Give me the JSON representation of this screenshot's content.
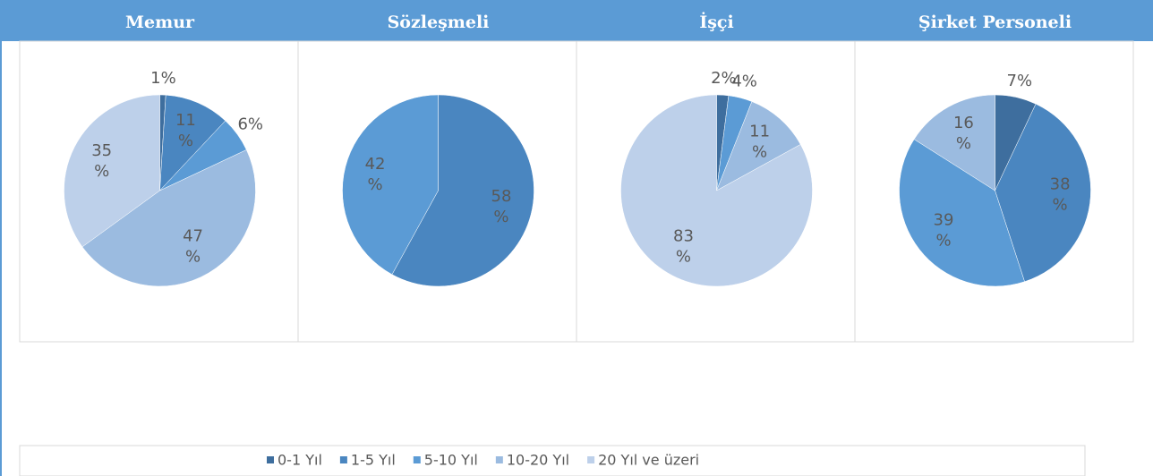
{
  "legend": {
    "categories": [
      "0-1 Yıl",
      "1-5 Yıl",
      "5-10 Yıl",
      "10-20 Yıl",
      "20 Yıl ve üzeri"
    ],
    "colors": [
      "#3e6e9e",
      "#4a86c0",
      "#5b9bd5",
      "#9bbbe0",
      "#bdd0ea"
    ]
  },
  "chart_data": [
    {
      "type": "pie",
      "title": "Memur",
      "values": [
        1,
        11,
        6,
        47,
        35
      ],
      "value_labels": [
        "1%",
        "11 %",
        "6%",
        "47 %",
        "35 %"
      ]
    },
    {
      "type": "pie",
      "title": "Sözleşmeli",
      "values": [
        null,
        58,
        42,
        null,
        null
      ],
      "value_labels": [
        null,
        "58 %",
        "42 %",
        null,
        null
      ]
    },
    {
      "type": "pie",
      "title": "İşçi",
      "values": [
        2,
        null,
        4,
        11,
        83
      ],
      "value_labels": [
        "2%",
        null,
        "4%",
        "11 %",
        "83 %"
      ]
    },
    {
      "type": "pie",
      "title": "Şirket Personeli",
      "values": [
        7,
        38,
        39,
        16,
        null
      ],
      "value_labels": [
        "7%",
        "38 %",
        "39 %",
        "16 %",
        null
      ]
    }
  ]
}
